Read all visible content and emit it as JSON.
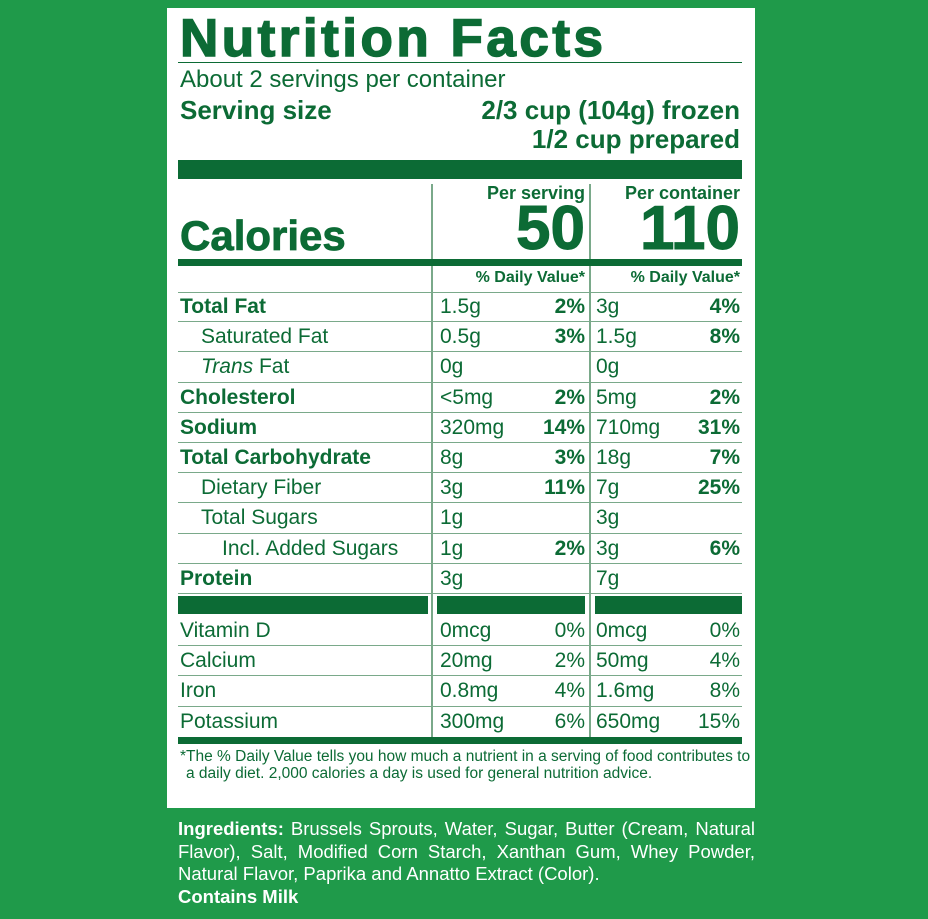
{
  "title": "Nutrition Facts",
  "servings": "About 2 servings per container",
  "serving_size": {
    "label": "Serving size",
    "value": "2/3 cup (104g) frozen",
    "value2": "1/2 cup prepared"
  },
  "columns": [
    "Per serving",
    "Per container"
  ],
  "calories": {
    "label": "Calories",
    "values": [
      "50",
      "110"
    ]
  },
  "daily_value_header": "% Daily Value*",
  "nutrients": [
    {
      "name": "Total Fat",
      "bold": true,
      "indent": 0,
      "serving": "1.5g",
      "serving_dv": "2%",
      "container": "3g",
      "container_dv": "4%"
    },
    {
      "name": "Saturated Fat",
      "bold": false,
      "indent": 1,
      "serving": "0.5g",
      "serving_dv": "3%",
      "container": "1.5g",
      "container_dv": "8%"
    },
    {
      "name_italic": "Trans",
      "name": "Fat",
      "bold": false,
      "indent": 1,
      "serving": "0g",
      "container": "0g"
    },
    {
      "name": "Cholesterol",
      "bold": true,
      "indent": 0,
      "serving": "<5mg",
      "serving_dv": "2%",
      "container": "5mg",
      "container_dv": "2%"
    },
    {
      "name": "Sodium",
      "bold": true,
      "indent": 0,
      "serving": "320mg",
      "serving_dv": "14%",
      "container": "710mg",
      "container_dv": "31%"
    },
    {
      "name": "Total Carbohydrate",
      "bold": true,
      "indent": 0,
      "serving": "8g",
      "serving_dv": "3%",
      "container": "18g",
      "container_dv": "7%"
    },
    {
      "name": "Dietary Fiber",
      "bold": false,
      "indent": 1,
      "serving": "3g",
      "serving_dv": "11%",
      "container": "7g",
      "container_dv": "25%"
    },
    {
      "name": "Total Sugars",
      "bold": false,
      "indent": 1,
      "serving": "1g",
      "container": "3g"
    },
    {
      "name": "Incl. Added Sugars",
      "bold": false,
      "indent": 2,
      "serving": "1g",
      "serving_dv": "2%",
      "container": "3g",
      "container_dv": "6%"
    },
    {
      "name": "Protein",
      "bold": true,
      "indent": 0,
      "serving": "3g",
      "container": "7g"
    }
  ],
  "vitamins": [
    {
      "name": "Vitamin D",
      "serving": "0mcg",
      "serving_dv": "0%",
      "container": "0mcg",
      "container_dv": "0%"
    },
    {
      "name": "Calcium",
      "serving": "20mg",
      "serving_dv": "2%",
      "container": "50mg",
      "container_dv": "4%"
    },
    {
      "name": "Iron",
      "serving": "0.8mg",
      "serving_dv": "4%",
      "container": "1.6mg",
      "container_dv": "8%"
    },
    {
      "name": "Potassium",
      "serving": "300mg",
      "serving_dv": "6%",
      "container": "650mg",
      "container_dv": "15%"
    }
  ],
  "footnote": "*The % Daily Value tells you how much a nutrient in a serving of food contributes to a daily diet. 2,000 calories a day is used for general nutrition advice.",
  "ingredients": {
    "label": "Ingredients:",
    "text": "Brussels Sprouts, Water, Sugar, Butter (Cream, Natural Flavor), Salt, Modified Corn Starch, Xanthan Gum, Whey Powder, Natural Flavor, Paprika and Annatto Extract (Color)."
  },
  "allergen": "Contains Milk"
}
